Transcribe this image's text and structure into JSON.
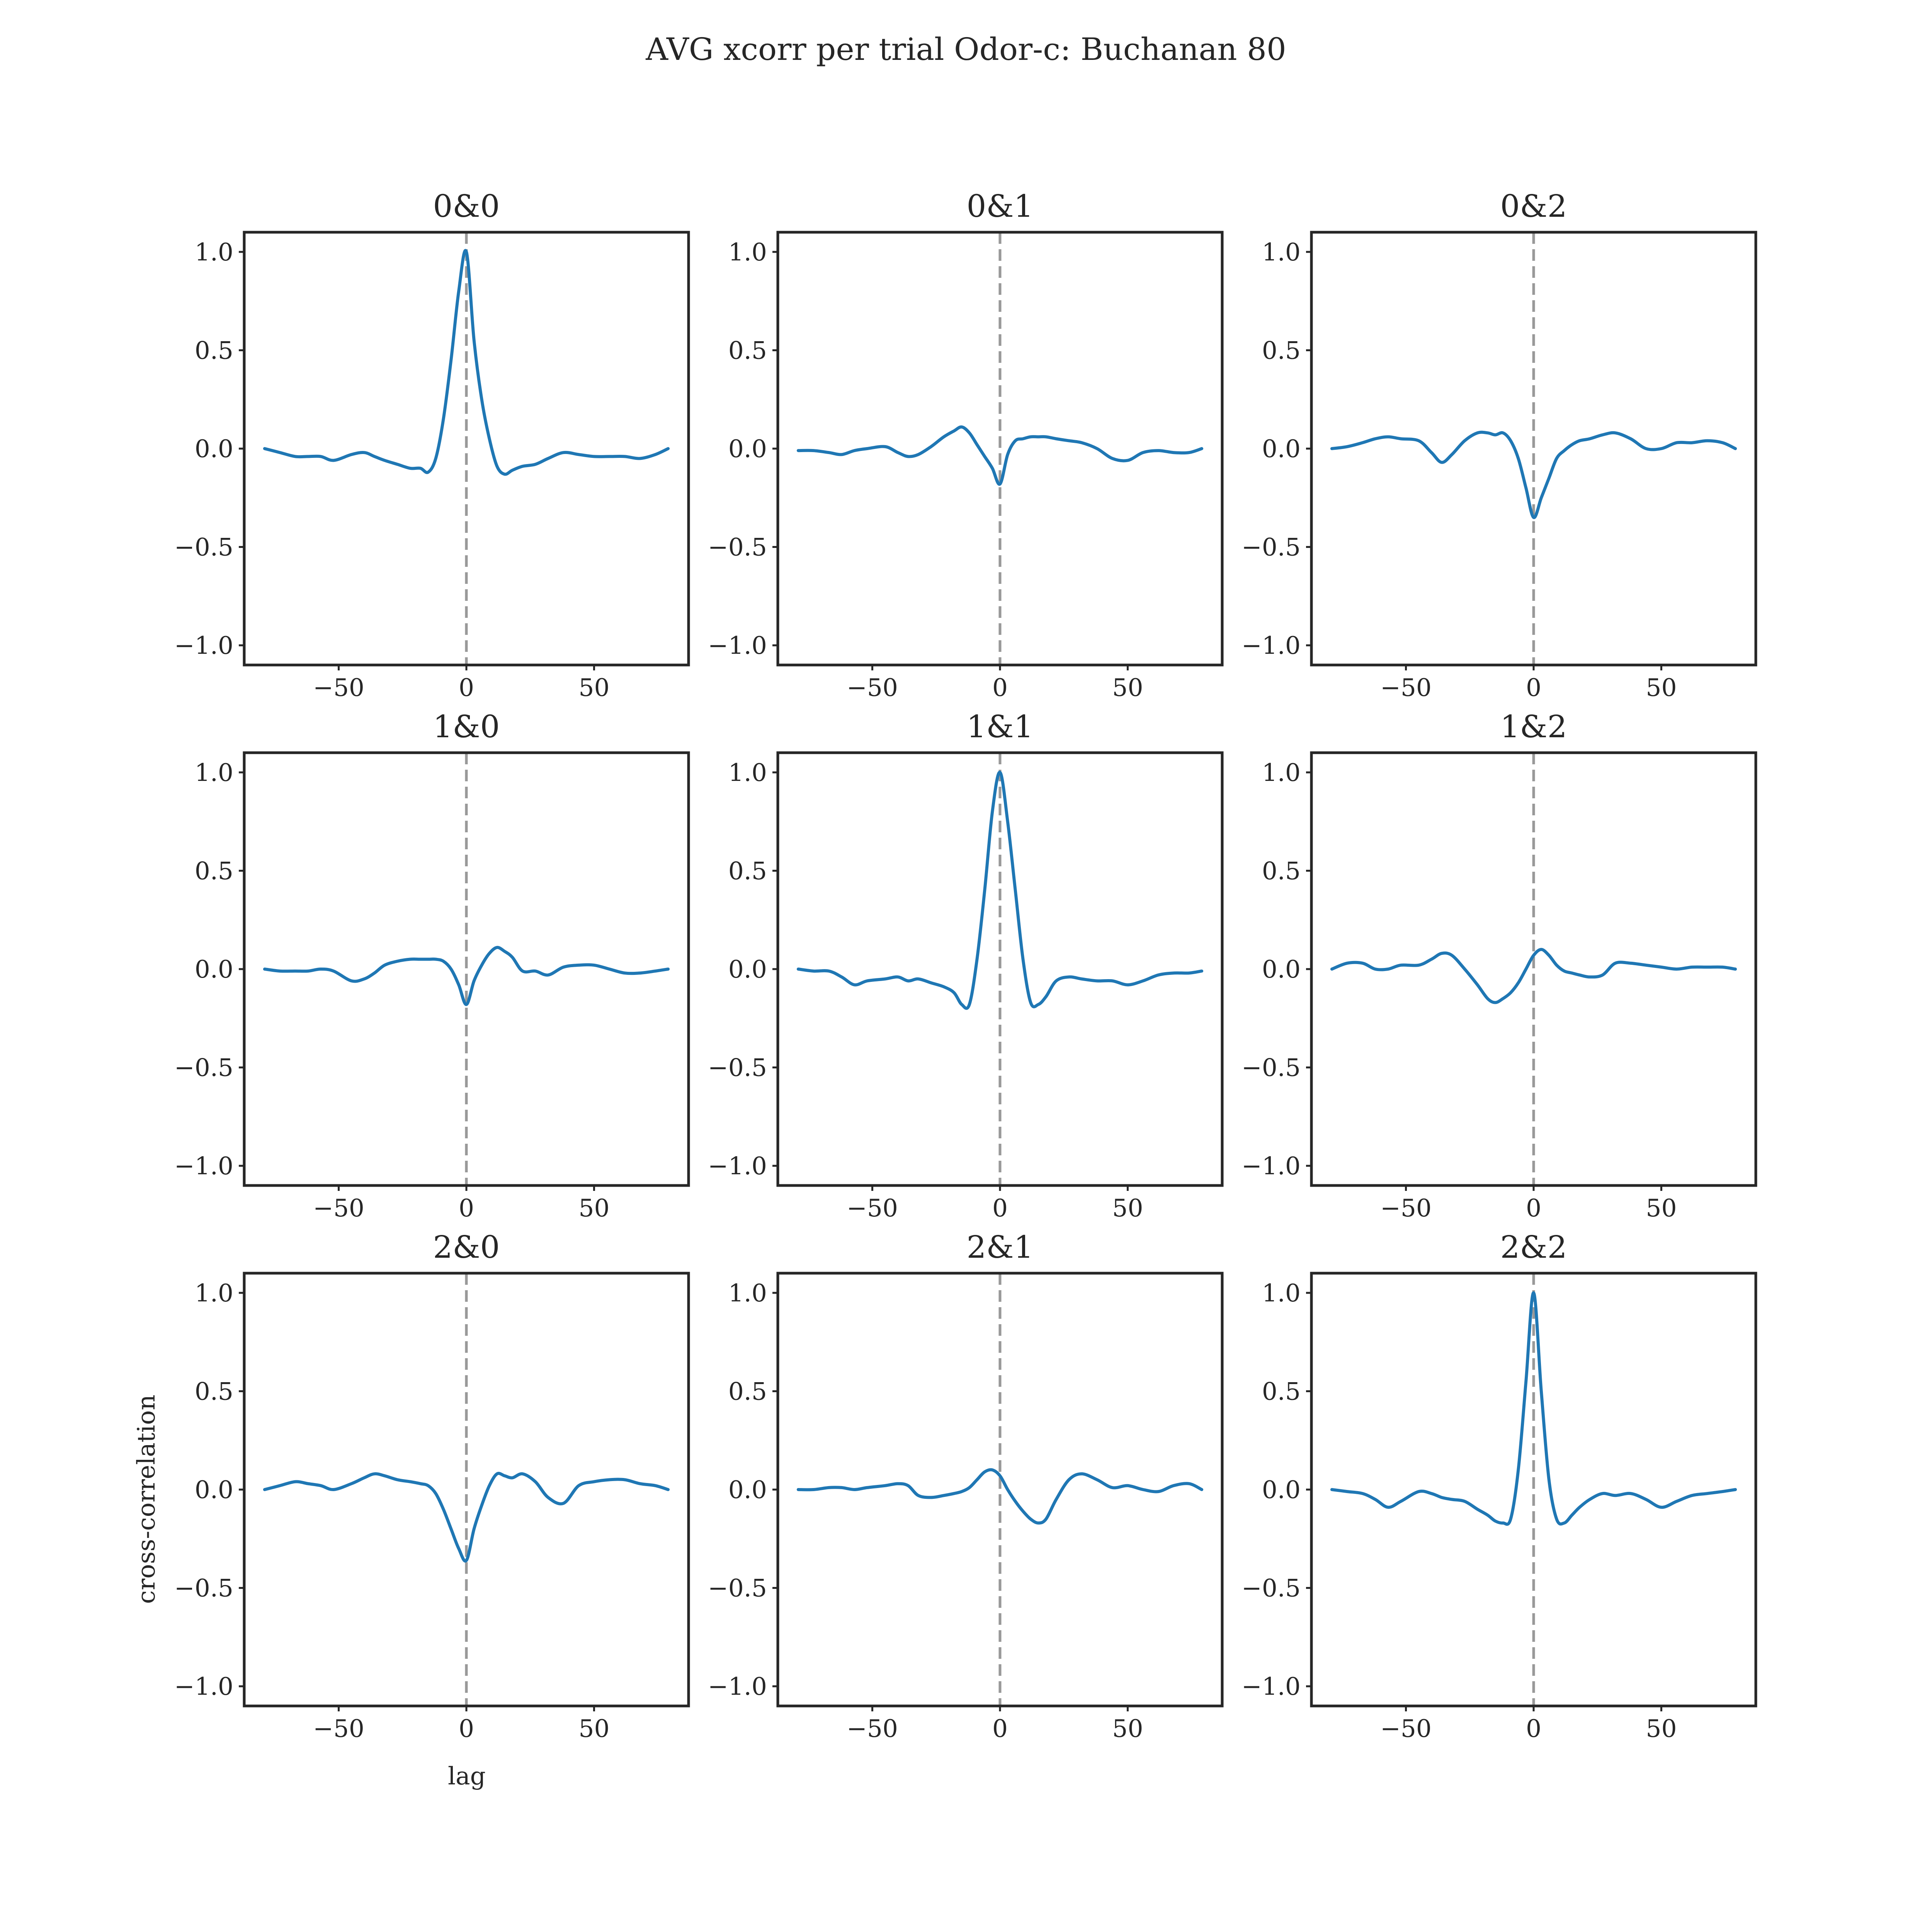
{
  "title": "AVG xcorr per trial Odor-c: Buchanan 80",
  "axis_labels": {
    "x": "lag",
    "y": "cross-correlation"
  },
  "chart_data": {
    "type": "line",
    "title": "AVG xcorr per trial Odor-c: Buchanan 80",
    "xlabel": "lag",
    "ylabel": "cross-correlation",
    "xlim": [
      -87,
      87
    ],
    "ylim": [
      -1.1,
      1.1
    ],
    "x_ticks": [
      -50,
      0,
      50
    ],
    "x_tick_labels": [
      "−50",
      "0",
      "50"
    ],
    "y_ticks": [
      -1.0,
      -0.5,
      0.0,
      0.5,
      1.0
    ],
    "y_tick_labels": [
      "−1.0",
      "−0.5",
      "0.0",
      "0.5",
      "1.0"
    ],
    "grid": false,
    "reference_line": {
      "x": 0,
      "style": "dashed",
      "color": "#999999"
    },
    "line_color": "#1f77b4",
    "x": [
      -79,
      -73,
      -67,
      -62,
      -57,
      -52,
      -45,
      -40,
      -36,
      -32,
      -27,
      -22,
      -18,
      -15,
      -12,
      -9,
      -6,
      -3,
      0,
      3,
      6,
      9,
      12,
      15,
      18,
      22,
      27,
      32,
      38,
      44,
      50,
      56,
      62,
      68,
      74,
      79
    ],
    "panels": [
      {
        "title": "0&0",
        "values": [
          0.0,
          -0.02,
          -0.04,
          -0.04,
          -0.04,
          -0.06,
          -0.03,
          -0.02,
          -0.04,
          -0.06,
          -0.08,
          -0.1,
          -0.1,
          -0.12,
          -0.05,
          0.15,
          0.45,
          0.8,
          1.0,
          0.55,
          0.25,
          0.05,
          -0.09,
          -0.13,
          -0.11,
          -0.09,
          -0.08,
          -0.05,
          -0.02,
          -0.03,
          -0.04,
          -0.04,
          -0.04,
          -0.05,
          -0.03,
          0.0
        ]
      },
      {
        "title": "0&1",
        "values": [
          -0.01,
          -0.01,
          -0.02,
          -0.03,
          -0.01,
          0.0,
          0.01,
          -0.02,
          -0.04,
          -0.03,
          0.01,
          0.06,
          0.09,
          0.11,
          0.08,
          0.02,
          -0.04,
          -0.1,
          -0.18,
          -0.03,
          0.04,
          0.05,
          0.06,
          0.06,
          0.06,
          0.05,
          0.04,
          0.03,
          0.0,
          -0.05,
          -0.06,
          -0.02,
          -0.01,
          -0.02,
          -0.02,
          0.0
        ]
      },
      {
        "title": "0&2",
        "values": [
          0.0,
          0.01,
          0.03,
          0.05,
          0.06,
          0.05,
          0.04,
          -0.02,
          -0.07,
          -0.03,
          0.04,
          0.08,
          0.08,
          0.07,
          0.08,
          0.04,
          -0.05,
          -0.2,
          -0.35,
          -0.25,
          -0.15,
          -0.05,
          -0.01,
          0.02,
          0.04,
          0.05,
          0.07,
          0.08,
          0.05,
          0.0,
          0.0,
          0.03,
          0.03,
          0.04,
          0.03,
          0.0
        ]
      },
      {
        "title": "1&0",
        "values": [
          0.0,
          -0.01,
          -0.01,
          -0.01,
          0.0,
          -0.01,
          -0.06,
          -0.05,
          -0.02,
          0.02,
          0.04,
          0.05,
          0.05,
          0.05,
          0.05,
          0.04,
          0.0,
          -0.08,
          -0.18,
          -0.06,
          0.02,
          0.08,
          0.11,
          0.09,
          0.06,
          -0.01,
          -0.01,
          -0.03,
          0.01,
          0.02,
          0.02,
          0.0,
          -0.02,
          -0.02,
          -0.01,
          0.0
        ]
      },
      {
        "title": "1&1",
        "values": [
          0.0,
          -0.01,
          -0.01,
          -0.04,
          -0.08,
          -0.06,
          -0.05,
          -0.04,
          -0.06,
          -0.05,
          -0.07,
          -0.09,
          -0.12,
          -0.18,
          -0.18,
          0.05,
          0.4,
          0.8,
          1.0,
          0.75,
          0.4,
          0.05,
          -0.17,
          -0.18,
          -0.14,
          -0.06,
          -0.04,
          -0.05,
          -0.06,
          -0.06,
          -0.08,
          -0.06,
          -0.03,
          -0.02,
          -0.02,
          -0.01
        ]
      },
      {
        "title": "1&2",
        "values": [
          0.0,
          0.03,
          0.03,
          0.0,
          0.0,
          0.02,
          0.02,
          0.05,
          0.08,
          0.07,
          0.0,
          -0.08,
          -0.15,
          -0.17,
          -0.15,
          -0.12,
          -0.07,
          0.0,
          0.07,
          0.1,
          0.07,
          0.02,
          -0.01,
          -0.02,
          -0.03,
          -0.04,
          -0.03,
          0.03,
          0.03,
          0.02,
          0.01,
          0.0,
          0.01,
          0.01,
          0.01,
          0.0
        ]
      },
      {
        "title": "2&0",
        "values": [
          0.0,
          0.02,
          0.04,
          0.03,
          0.02,
          0.0,
          0.03,
          0.06,
          0.08,
          0.07,
          0.05,
          0.04,
          0.03,
          0.02,
          -0.02,
          -0.1,
          -0.2,
          -0.3,
          -0.36,
          -0.2,
          -0.08,
          0.02,
          0.08,
          0.07,
          0.06,
          0.08,
          0.04,
          -0.04,
          -0.07,
          0.02,
          0.04,
          0.05,
          0.05,
          0.03,
          0.02,
          0.0
        ]
      },
      {
        "title": "2&1",
        "values": [
          0.0,
          0.0,
          0.01,
          0.01,
          0.0,
          0.01,
          0.02,
          0.03,
          0.02,
          -0.03,
          -0.04,
          -0.03,
          -0.02,
          -0.01,
          0.01,
          0.05,
          0.09,
          0.1,
          0.07,
          0.0,
          -0.06,
          -0.11,
          -0.15,
          -0.17,
          -0.15,
          -0.05,
          0.05,
          0.08,
          0.05,
          0.01,
          0.02,
          0.0,
          -0.01,
          0.02,
          0.03,
          0.0
        ]
      },
      {
        "title": "2&2",
        "values": [
          0.0,
          -0.01,
          -0.02,
          -0.05,
          -0.09,
          -0.06,
          -0.01,
          -0.02,
          -0.04,
          -0.05,
          -0.06,
          -0.1,
          -0.13,
          -0.16,
          -0.17,
          -0.15,
          0.1,
          0.55,
          1.0,
          0.5,
          0.05,
          -0.15,
          -0.17,
          -0.13,
          -0.09,
          -0.05,
          -0.02,
          -0.03,
          -0.02,
          -0.05,
          -0.09,
          -0.06,
          -0.03,
          -0.02,
          -0.01,
          0.0
        ]
      }
    ]
  }
}
